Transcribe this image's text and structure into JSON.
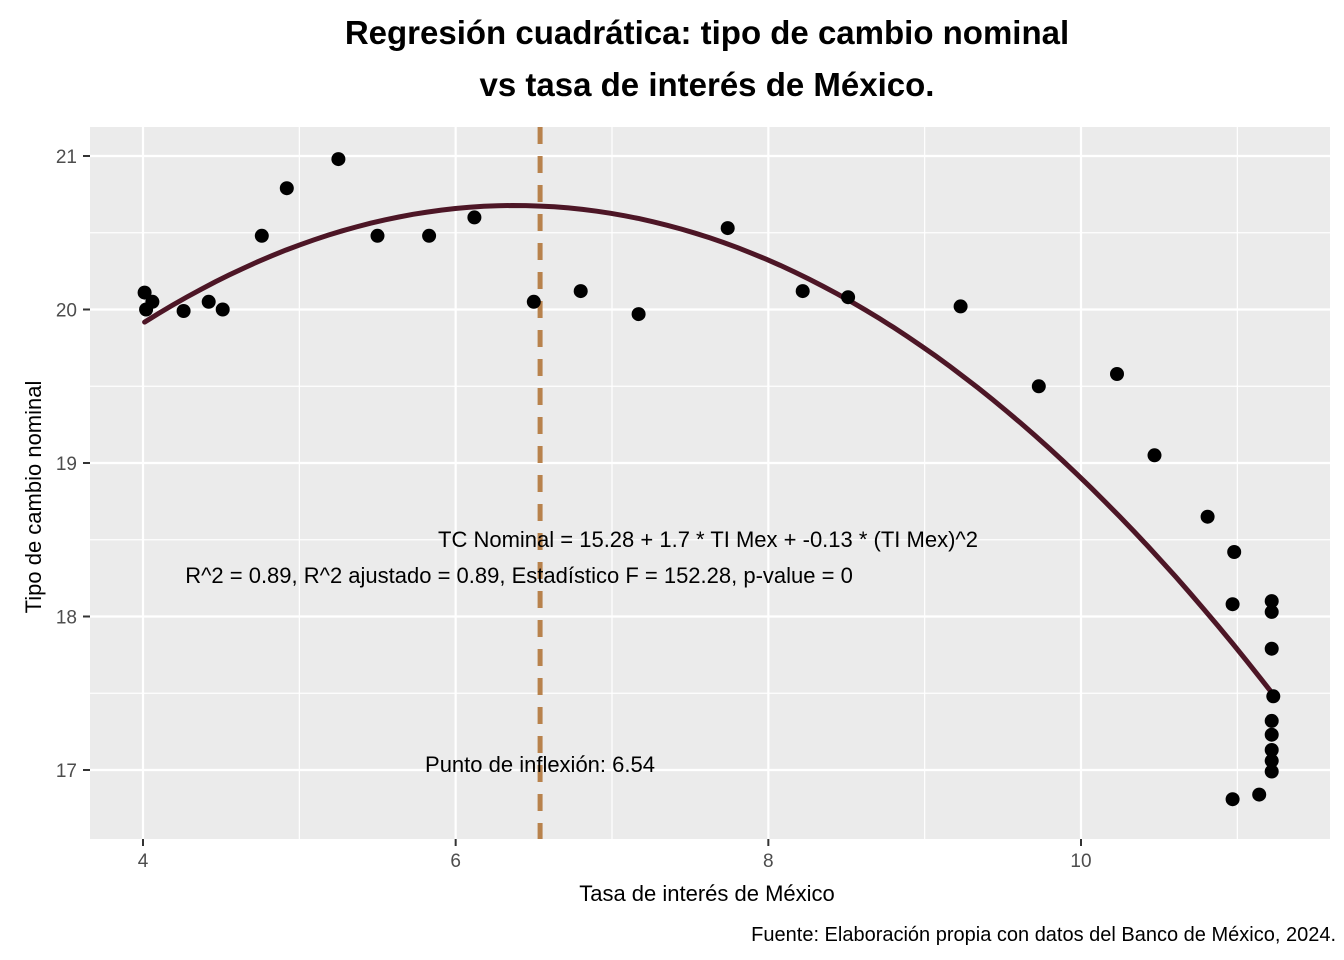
{
  "title": {
    "line1": "Regresión cuadrática: tipo de cambio nominal",
    "line2": "vs tasa de interés de México."
  },
  "axes": {
    "x_label": "Tasa de interés de México",
    "y_label": "Tipo de cambio nominal",
    "x_ticks": [
      4,
      6,
      8,
      10
    ],
    "x_minor_ticks": [
      5,
      7,
      9,
      11
    ],
    "y_ticks": [
      21,
      20,
      19,
      18,
      17
    ],
    "y_minor_ticks": [
      20.5,
      19.5,
      18.5,
      17.5
    ]
  },
  "annotations": {
    "equation": "TC Nominal = 15.28 + 1.7 * TI Mex + -0.13 * (TI Mex)^2",
    "stats": "R^2 = 0.89, R^2 ajustado = 0.89, Estadístico F = 152.28, p-value = 0",
    "inflection": "Punto de inflexión: 6.54"
  },
  "caption": "Fuente: Elaboración propia con datos del Banco de México, 2024.",
  "colors": {
    "curve": "#4d1626",
    "inflection_line": "#b8824c",
    "panel_bg": "#ebebeb",
    "grid": "#ffffff",
    "point": "#000000",
    "tick_mark": "#333333",
    "tick_label": "#4d4d4d"
  },
  "chart_data": {
    "type": "scatter",
    "title": "Regresión cuadrática: tipo de cambio nominal vs tasa de interés de México.",
    "xlabel": "Tasa de interés de México",
    "ylabel": "Tipo de cambio nominal",
    "xlim": [
      3.67,
      11.58
    ],
    "ylim": [
      16.56,
      21.19
    ],
    "grid": true,
    "points": [
      [
        4.01,
        20.11
      ],
      [
        4.06,
        20.05
      ],
      [
        4.02,
        20.0
      ],
      [
        4.26,
        19.99
      ],
      [
        4.42,
        20.05
      ],
      [
        4.51,
        20.0
      ],
      [
        4.76,
        20.48
      ],
      [
        4.92,
        20.79
      ],
      [
        5.25,
        20.98
      ],
      [
        5.5,
        20.48
      ],
      [
        5.83,
        20.48
      ],
      [
        6.12,
        20.6
      ],
      [
        6.5,
        20.05
      ],
      [
        6.8,
        20.12
      ],
      [
        7.17,
        19.97
      ],
      [
        7.74,
        20.53
      ],
      [
        8.22,
        20.12
      ],
      [
        8.51,
        20.08
      ],
      [
        9.23,
        20.02
      ],
      [
        9.73,
        19.5
      ],
      [
        10.23,
        19.58
      ],
      [
        10.47,
        19.05
      ],
      [
        10.81,
        18.65
      ],
      [
        10.98,
        18.42
      ],
      [
        10.97,
        18.08
      ],
      [
        11.22,
        18.1
      ],
      [
        11.22,
        18.03
      ],
      [
        11.22,
        17.79
      ],
      [
        11.23,
        17.48
      ],
      [
        11.22,
        17.32
      ],
      [
        11.22,
        17.23
      ],
      [
        11.22,
        17.13
      ],
      [
        11.22,
        17.06
      ],
      [
        11.22,
        16.99
      ],
      [
        11.14,
        16.84
      ],
      [
        10.97,
        16.81
      ]
    ],
    "regression": {
      "model": "quadratic",
      "equation_text": "TC Nominal = 15.28 + 1.7 * TI Mex + -0.13 * (TI Mex)^2",
      "intercept": 15.28,
      "b1": 1.7,
      "b2": -0.13,
      "r2": 0.89,
      "r2_adjusted": 0.89,
      "f_statistic": 152.28,
      "p_value": 0,
      "inflection_x": 6.54,
      "draw_fit": {
        "a": -0.1354,
        "b": 1.7274,
        "c": 15.168,
        "x_from": 4.01,
        "x_to": 11.24
      }
    }
  }
}
